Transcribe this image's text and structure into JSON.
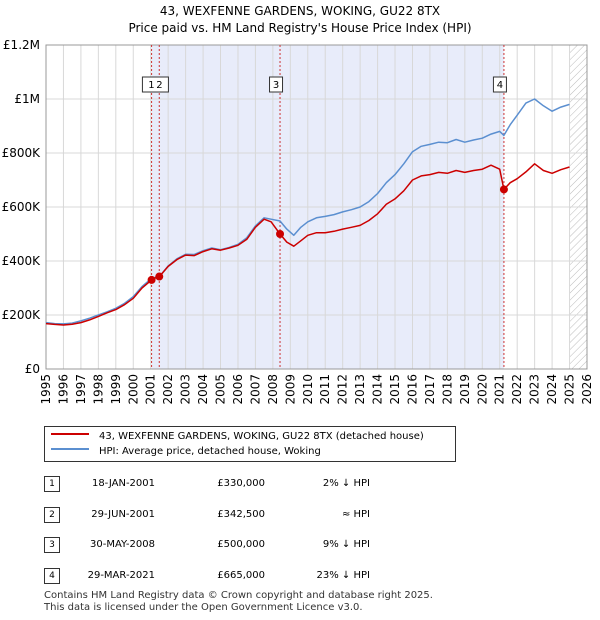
{
  "chart_data": {
    "type": "line",
    "title": "43, WEXFENNE GARDENS, WOKING, GU22 8TX",
    "subtitle": "Price paid vs. HM Land Registry's House Price Index (HPI)",
    "xlim": [
      1995,
      2026
    ],
    "ylim": [
      0,
      1200000
    ],
    "x_ticks": [
      "1995",
      "1996",
      "1997",
      "1998",
      "1999",
      "2000",
      "2001",
      "2002",
      "2003",
      "2004",
      "2005",
      "2006",
      "2007",
      "2008",
      "2009",
      "2010",
      "2011",
      "2012",
      "2013",
      "2014",
      "2015",
      "2016",
      "2017",
      "2018",
      "2019",
      "2020",
      "2021",
      "2022",
      "2023",
      "2024",
      "2025",
      "2026"
    ],
    "y_ticks": [
      {
        "value": 0,
        "label": "£0"
      },
      {
        "value": 200000,
        "label": "£200K"
      },
      {
        "value": 400000,
        "label": "£400K"
      },
      {
        "value": 600000,
        "label": "£600K"
      },
      {
        "value": 800000,
        "label": "£800K"
      },
      {
        "value": 1000000,
        "label": "£1M"
      },
      {
        "value": 1200000,
        "label": "£1.2M"
      }
    ],
    "series": [
      {
        "name": "43, WEXFENNE GARDENS, WOKING, GU22 8TX (detached house)",
        "color": "#cc0000",
        "points": [
          [
            1995,
            168000
          ],
          [
            1995.5,
            165000
          ],
          [
            1996,
            163000
          ],
          [
            1996.5,
            166000
          ],
          [
            1997,
            172000
          ],
          [
            1997.5,
            182000
          ],
          [
            1998,
            195000
          ],
          [
            1998.5,
            208000
          ],
          [
            1999,
            220000
          ],
          [
            1999.5,
            238000
          ],
          [
            2000,
            262000
          ],
          [
            2000.5,
            300000
          ],
          [
            2001.05,
            330000
          ],
          [
            2001.3,
            338000
          ],
          [
            2001.5,
            342500
          ],
          [
            2002,
            380000
          ],
          [
            2002.5,
            405000
          ],
          [
            2003,
            422000
          ],
          [
            2003.5,
            420000
          ],
          [
            2004,
            435000
          ],
          [
            2004.5,
            445000
          ],
          [
            2005,
            440000
          ],
          [
            2005.5,
            448000
          ],
          [
            2006,
            458000
          ],
          [
            2006.5,
            480000
          ],
          [
            2007,
            525000
          ],
          [
            2007.5,
            555000
          ],
          [
            2007.9,
            545000
          ],
          [
            2008.41,
            500000
          ],
          [
            2008.8,
            470000
          ],
          [
            2009.2,
            455000
          ],
          [
            2009.6,
            475000
          ],
          [
            2010,
            495000
          ],
          [
            2010.5,
            505000
          ],
          [
            2011,
            505000
          ],
          [
            2011.5,
            510000
          ],
          [
            2012,
            518000
          ],
          [
            2012.5,
            525000
          ],
          [
            2013,
            532000
          ],
          [
            2013.5,
            550000
          ],
          [
            2014,
            575000
          ],
          [
            2014.5,
            610000
          ],
          [
            2015,
            630000
          ],
          [
            2015.5,
            660000
          ],
          [
            2016,
            700000
          ],
          [
            2016.5,
            715000
          ],
          [
            2017,
            720000
          ],
          [
            2017.5,
            728000
          ],
          [
            2018,
            725000
          ],
          [
            2018.5,
            735000
          ],
          [
            2019,
            728000
          ],
          [
            2019.5,
            735000
          ],
          [
            2020,
            740000
          ],
          [
            2020.5,
            755000
          ],
          [
            2021.0,
            740000
          ],
          [
            2021.24,
            665000
          ],
          [
            2021.6,
            690000
          ],
          [
            2022,
            705000
          ],
          [
            2022.5,
            730000
          ],
          [
            2023,
            760000
          ],
          [
            2023.5,
            735000
          ],
          [
            2024,
            725000
          ],
          [
            2024.5,
            738000
          ],
          [
            2025,
            748000
          ]
        ]
      },
      {
        "name": "HPI: Average price, detached house, Woking",
        "color": "#5b8fd0",
        "points": [
          [
            1995,
            172000
          ],
          [
            1995.5,
            168000
          ],
          [
            1996,
            167000
          ],
          [
            1996.5,
            170000
          ],
          [
            1997,
            178000
          ],
          [
            1997.5,
            188000
          ],
          [
            1998,
            200000
          ],
          [
            1998.5,
            212000
          ],
          [
            1999,
            225000
          ],
          [
            1999.5,
            243000
          ],
          [
            2000,
            268000
          ],
          [
            2000.5,
            305000
          ],
          [
            2001.05,
            336000
          ],
          [
            2001.3,
            340000
          ],
          [
            2001.5,
            342000
          ],
          [
            2002,
            382000
          ],
          [
            2002.5,
            408000
          ],
          [
            2003,
            425000
          ],
          [
            2003.5,
            424000
          ],
          [
            2004,
            438000
          ],
          [
            2004.5,
            448000
          ],
          [
            2005,
            442000
          ],
          [
            2005.5,
            450000
          ],
          [
            2006,
            462000
          ],
          [
            2006.5,
            486000
          ],
          [
            2007,
            530000
          ],
          [
            2007.5,
            560000
          ],
          [
            2007.9,
            555000
          ],
          [
            2008.41,
            548000
          ],
          [
            2008.8,
            518000
          ],
          [
            2009.2,
            495000
          ],
          [
            2009.6,
            525000
          ],
          [
            2010,
            545000
          ],
          [
            2010.5,
            560000
          ],
          [
            2011,
            565000
          ],
          [
            2011.5,
            572000
          ],
          [
            2012,
            582000
          ],
          [
            2012.5,
            590000
          ],
          [
            2013,
            600000
          ],
          [
            2013.5,
            620000
          ],
          [
            2014,
            650000
          ],
          [
            2014.5,
            690000
          ],
          [
            2015,
            720000
          ],
          [
            2015.5,
            760000
          ],
          [
            2016,
            805000
          ],
          [
            2016.5,
            825000
          ],
          [
            2017,
            832000
          ],
          [
            2017.5,
            840000
          ],
          [
            2018,
            838000
          ],
          [
            2018.5,
            850000
          ],
          [
            2019,
            840000
          ],
          [
            2019.5,
            848000
          ],
          [
            2020,
            855000
          ],
          [
            2020.5,
            870000
          ],
          [
            2021,
            880000
          ],
          [
            2021.24,
            865000
          ],
          [
            2021.6,
            905000
          ],
          [
            2022,
            940000
          ],
          [
            2022.5,
            985000
          ],
          [
            2023,
            1000000
          ],
          [
            2023.5,
            975000
          ],
          [
            2024,
            955000
          ],
          [
            2024.5,
            970000
          ],
          [
            2025,
            980000
          ]
        ]
      }
    ],
    "sale_points": [
      [
        2001.05,
        330000
      ],
      [
        2001.49,
        342500
      ],
      [
        2008.41,
        500000
      ],
      [
        2021.24,
        665000
      ]
    ],
    "sale_markers": [
      {
        "label": "1",
        "x": 2001.05
      },
      {
        "label": "2",
        "x": 2001.49
      },
      {
        "label": "3",
        "x": 2008.41
      },
      {
        "label": "4",
        "x": 2021.24
      }
    ],
    "shaded_range": [
      2001.05,
      2021.24
    ],
    "hatched_from": 2025.0
  },
  "legend": {
    "items": [
      {
        "label": "43, WEXFENNE GARDENS, WOKING, GU22 8TX (detached house)",
        "color": "#cc0000"
      },
      {
        "label": "HPI: Average price, detached house, Woking",
        "color": "#5b8fd0"
      }
    ]
  },
  "sales": [
    {
      "num": "1",
      "date": "18-JAN-2001",
      "price": "£330,000",
      "relation": "2% ↓ HPI"
    },
    {
      "num": "2",
      "date": "29-JUN-2001",
      "price": "£342,500",
      "relation": "≈ HPI"
    },
    {
      "num": "3",
      "date": "30-MAY-2008",
      "price": "£500,000",
      "relation": "9% ↓ HPI"
    },
    {
      "num": "4",
      "date": "29-MAR-2021",
      "price": "£665,000",
      "relation": "23% ↓ HPI"
    }
  ],
  "footer": {
    "line1": "Contains HM Land Registry data © Crown copyright and database right 2025.",
    "line2": "This data is licensed under the Open Government Licence v3.0."
  }
}
